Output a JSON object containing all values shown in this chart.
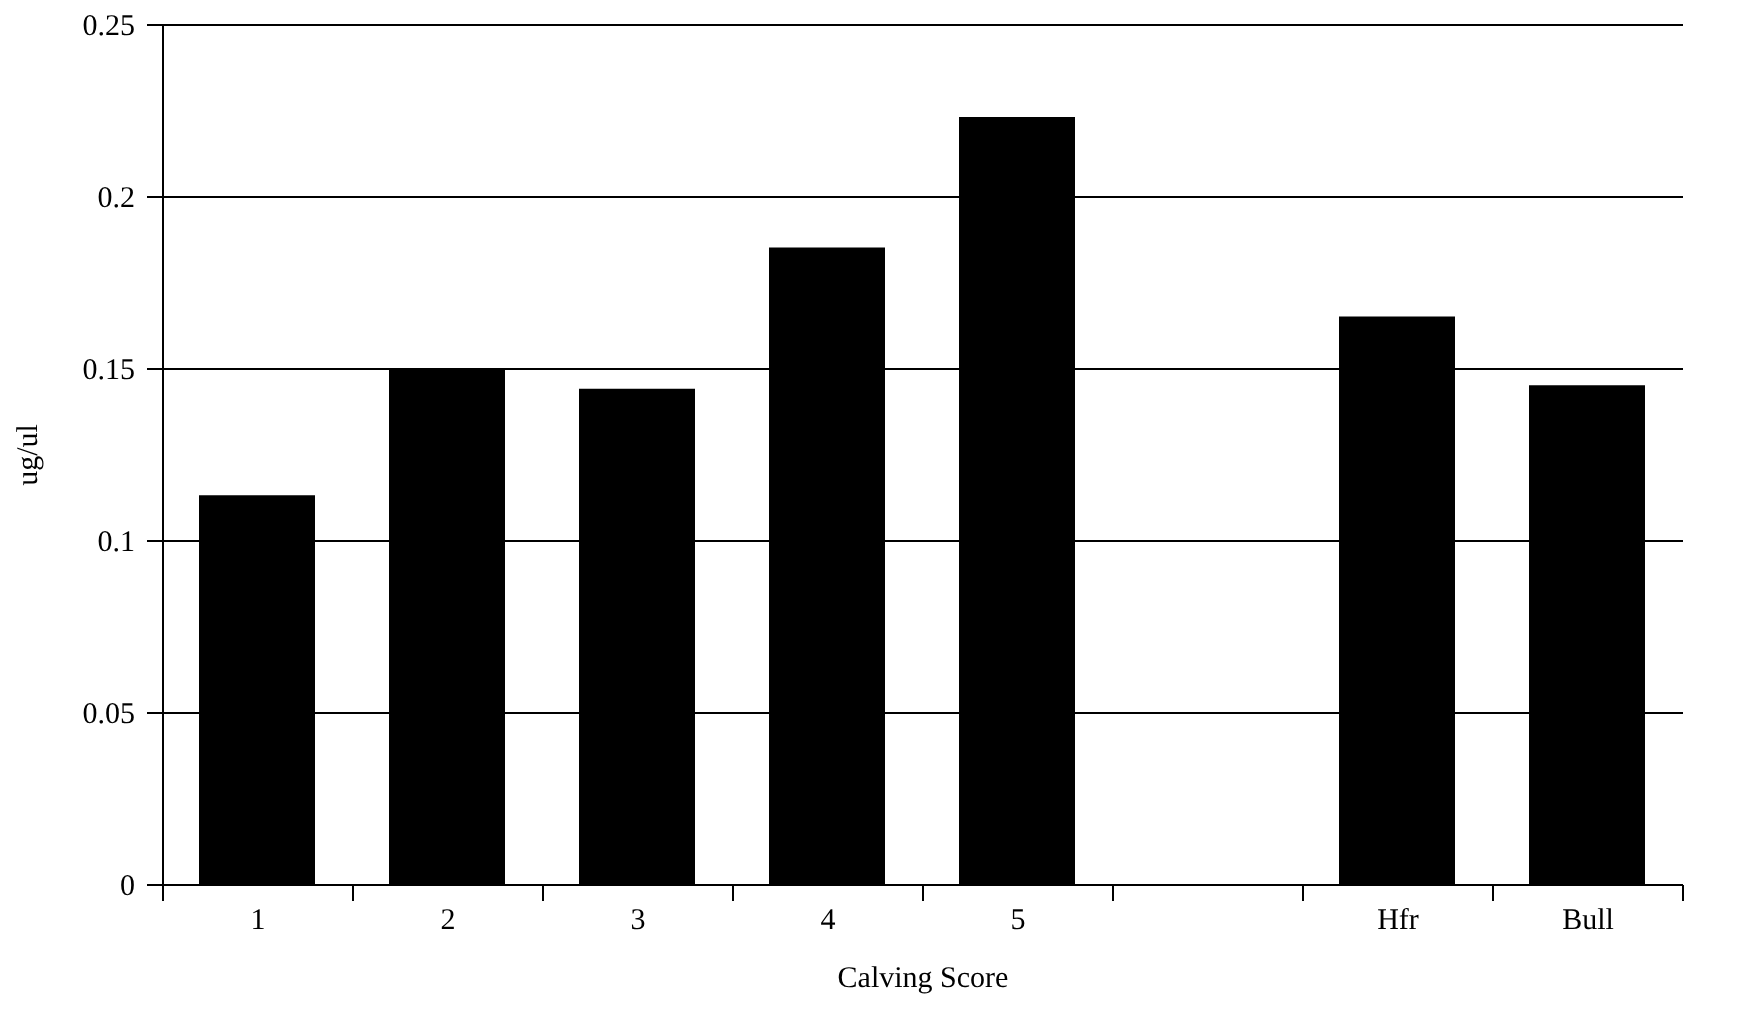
{
  "chart_data": {
    "type": "bar",
    "xlabel": "Calving Score",
    "ylabel": "ug/ul",
    "categories": [
      "1",
      "2",
      "3",
      "4",
      "5",
      null,
      "Hfr",
      "Bull"
    ],
    "values": [
      0.113,
      0.15,
      0.144,
      0.185,
      0.223,
      null,
      0.165,
      0.145
    ],
    "color": "#000000",
    "ylim": [
      0,
      0.25
    ],
    "yticks": [
      0,
      0.05,
      0.1,
      0.15,
      0.2,
      0.25
    ],
    "grid": "y"
  }
}
